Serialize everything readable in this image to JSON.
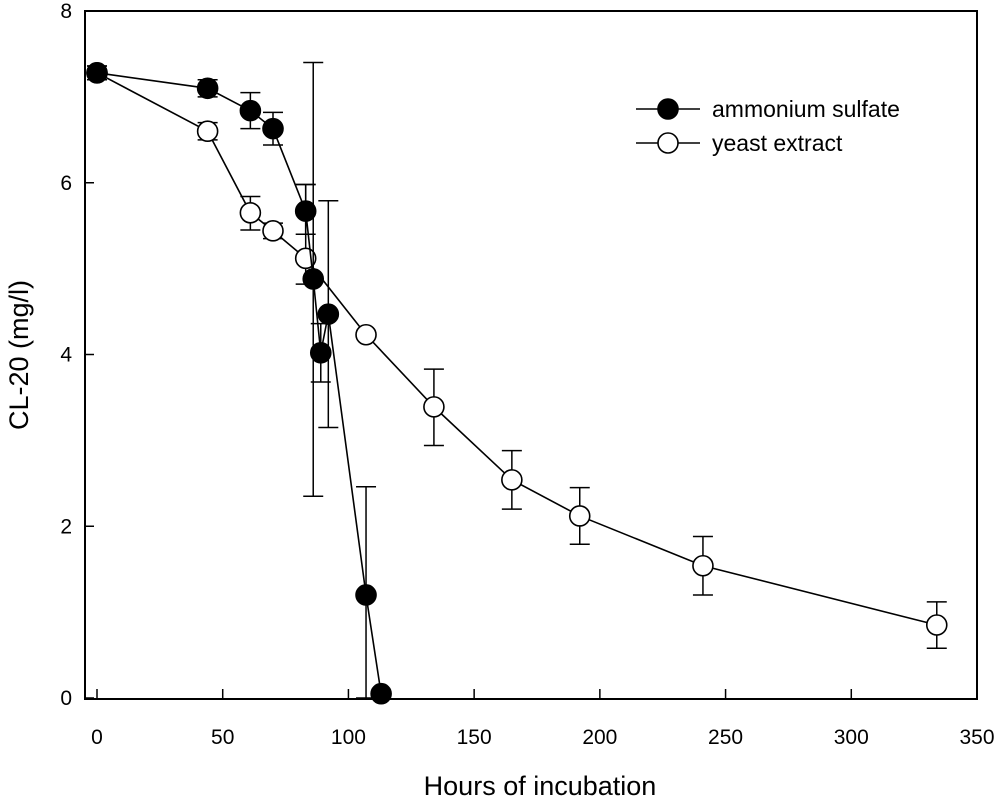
{
  "chart_data": {
    "type": "line",
    "title": "",
    "xlabel": "Hours of incubation",
    "ylabel": "CL-20 (mg/l)",
    "xlim": [
      0,
      350
    ],
    "ylim": [
      0,
      8
    ],
    "xticks": [
      0,
      50,
      100,
      150,
      200,
      250,
      300,
      350
    ],
    "yticks": [
      0,
      2,
      4,
      6,
      8
    ],
    "grid": false,
    "legend_position": "top-right",
    "series": [
      {
        "name": "ammonium sulfate",
        "marker": "filled-circle",
        "color": "#000000",
        "points": [
          {
            "x": 0,
            "y": 7.28,
            "err_low": 7.2,
            "err_high": 7.36
          },
          {
            "x": 44,
            "y": 7.1,
            "err_low": 7.0,
            "err_high": 7.2
          },
          {
            "x": 61,
            "y": 6.84,
            "err_low": 6.63,
            "err_high": 7.05
          },
          {
            "x": 70,
            "y": 6.63,
            "err_low": 6.44,
            "err_high": 6.82
          },
          {
            "x": 83,
            "y": 5.67,
            "err_low": 5.4,
            "err_high": 5.98
          },
          {
            "x": 86,
            "y": 4.88,
            "err_low": 2.35,
            "err_high": 7.4
          },
          {
            "x": 89,
            "y": 4.02,
            "err_low": 3.68,
            "err_high": 4.36
          },
          {
            "x": 92,
            "y": 4.47,
            "err_low": 3.15,
            "err_high": 5.79
          },
          {
            "x": 107,
            "y": 1.2,
            "err_low": 0.0,
            "err_high": 2.46
          },
          {
            "x": 113,
            "y": 0.05,
            "err_low": 0.05,
            "err_high": 0.05
          }
        ]
      },
      {
        "name": "yeast extract",
        "marker": "open-circle",
        "color": "#000000",
        "points": [
          {
            "x": 0,
            "y": 7.28,
            "err_low": 7.2,
            "err_high": 7.36
          },
          {
            "x": 44,
            "y": 6.6,
            "err_low": 6.5,
            "err_high": 6.7
          },
          {
            "x": 61,
            "y": 5.65,
            "err_low": 5.45,
            "err_high": 5.84
          },
          {
            "x": 70,
            "y": 5.44,
            "err_low": 5.35,
            "err_high": 5.53
          },
          {
            "x": 83,
            "y": 5.12,
            "err_low": 4.82,
            "err_high": 5.98
          },
          {
            "x": 107,
            "y": 4.23,
            "err_low": 4.23,
            "err_high": 4.23
          },
          {
            "x": 134,
            "y": 3.39,
            "err_low": 2.94,
            "err_high": 3.83
          },
          {
            "x": 165,
            "y": 2.54,
            "err_low": 2.2,
            "err_high": 2.88
          },
          {
            "x": 192,
            "y": 2.12,
            "err_low": 1.79,
            "err_high": 2.45
          },
          {
            "x": 241,
            "y": 1.54,
            "err_low": 1.2,
            "err_high": 1.88
          },
          {
            "x": 334,
            "y": 0.85,
            "err_low": 0.58,
            "err_high": 1.12
          }
        ]
      }
    ]
  }
}
